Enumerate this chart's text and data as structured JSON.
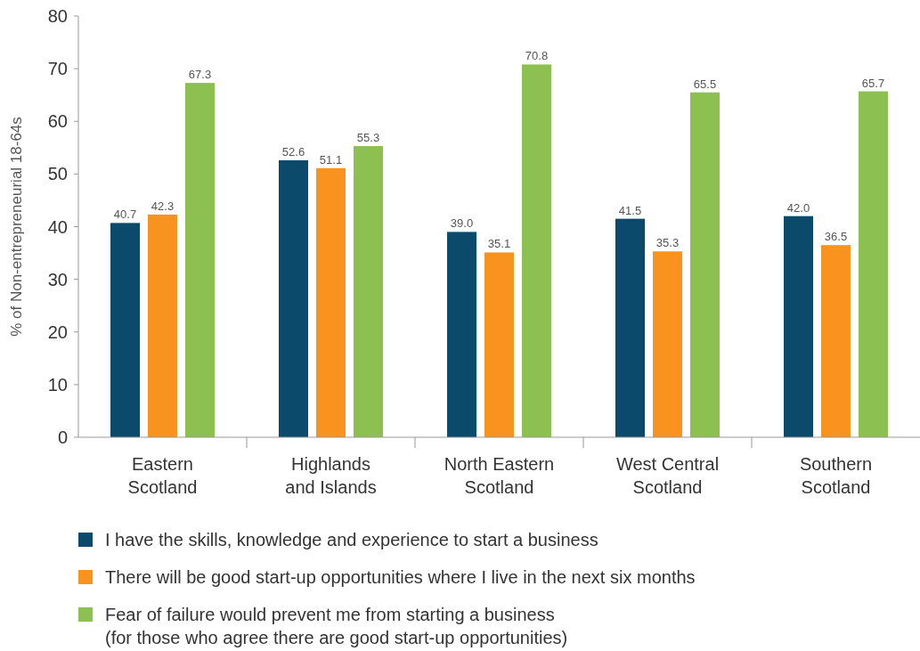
{
  "chart_data": {
    "type": "bar",
    "ylabel": "% of Non-entrepreneurial 18-64s",
    "categories": [
      "Eastern Scotland",
      "Highlands and Islands",
      "North Eastern Scotland",
      "West Central Scotland",
      "Southern Scotland"
    ],
    "series": [
      {
        "name": "I have the skills, knowledge and experience to start a business",
        "color": "#0b4a6b",
        "values": [
          40.7,
          52.6,
          39.0,
          41.5,
          42.0
        ],
        "value_labels": [
          "40.7",
          "52.6",
          "39.0",
          "41.5",
          "42.0"
        ]
      },
      {
        "name": "There will be good start-up opportunities where I live in the next six months",
        "color": "#f7931e",
        "values": [
          42.3,
          51.1,
          35.1,
          35.3,
          36.5
        ],
        "value_labels": [
          "42.3",
          "51.1",
          "35.1",
          "35.3",
          "36.5"
        ]
      },
      {
        "name": "Fear of failure would prevent me from starting a business\n(for those who agree there are good start-up opportunities)",
        "color": "#8cc152",
        "values": [
          67.3,
          55.3,
          70.8,
          65.5,
          65.7
        ],
        "value_labels": [
          "67.3",
          "55.3",
          "70.8",
          "65.5",
          "65.7"
        ]
      }
    ],
    "ylim": [
      0,
      80
    ],
    "yticks": [
      0,
      10,
      20,
      30,
      40,
      50,
      60,
      70,
      80
    ],
    "grid": false,
    "legend": "bottom"
  }
}
